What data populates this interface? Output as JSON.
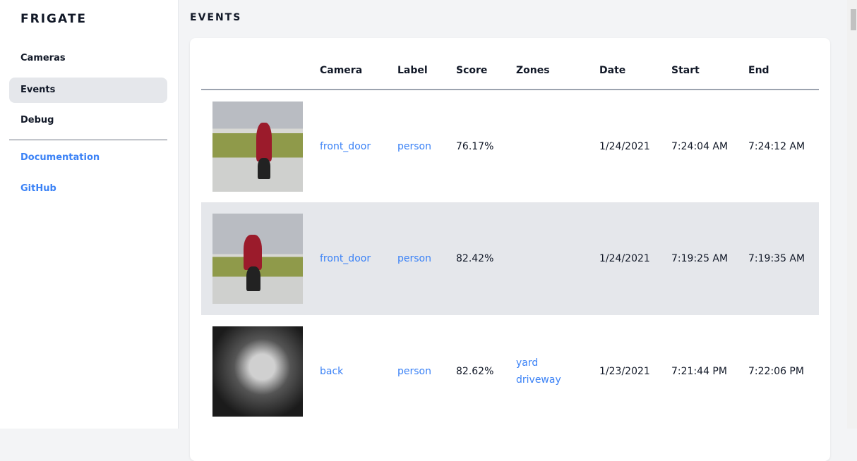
{
  "sidebar": {
    "brand": "FRIGATE",
    "items": [
      {
        "label": "Cameras"
      },
      {
        "label": "Events",
        "active": true
      },
      {
        "label": "Debug"
      }
    ],
    "links": [
      {
        "label": "Documentation"
      },
      {
        "label": "GitHub"
      }
    ]
  },
  "page": {
    "title": "EVENTS"
  },
  "table": {
    "headers": [
      "",
      "Camera",
      "Label",
      "Score",
      "Zones",
      "Date",
      "Start",
      "End"
    ],
    "rows": [
      {
        "thumbnail": "person walking dog",
        "camera": "front_door",
        "label": "person",
        "score": "76.17%",
        "zones": [
          "",
          ""
        ],
        "date": "1/24/2021",
        "start": "7:24:04 AM",
        "end": "7:24:12 AM"
      },
      {
        "thumbnail": "person walking dog",
        "camera": "front_door",
        "label": "person",
        "score": "82.42%",
        "zones": [
          "",
          ""
        ],
        "date": "1/24/2021",
        "start": "7:19:25 AM",
        "end": "7:19:35 AM"
      },
      {
        "thumbnail": "person at night",
        "camera": "back",
        "label": "person",
        "score": "82.62%",
        "zones": [
          "yard",
          "driveway"
        ],
        "date": "1/23/2021",
        "start": "7:21:44 PM",
        "end": "7:22:06 PM"
      }
    ]
  },
  "colors": {
    "link": "#3b82f6",
    "active_bg": "#e5e7eb",
    "page_bg": "#f3f4f6"
  }
}
